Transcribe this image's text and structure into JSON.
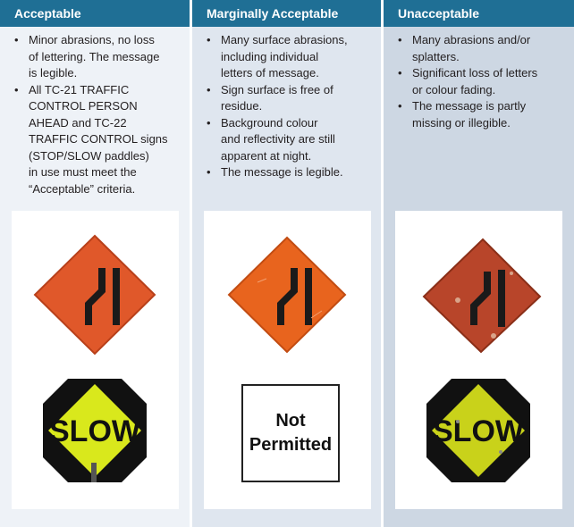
{
  "columns": [
    {
      "header": "Acceptable",
      "criteria": [
        "Minor abrasions, no loss\nof lettering. The message\nis legible.",
        "All TC-21 TRAFFIC\nCONTROL PERSON\nAHEAD and TC-22\nTRAFFIC CONTROL signs\n(STOP/SLOW paddles)\nin use must meet the\n“Acceptable” criteria."
      ],
      "paddle_text": "SLOW"
    },
    {
      "header": "Marginally Acceptable",
      "criteria": [
        "Many surface abrasions,\nincluding individual\nletters of message.",
        "Sign surface is free of\nresidue.",
        "Background colour\nand reflectivity are still\napparent at night.",
        "The message is legible."
      ],
      "not_permitted": "Not\nPermitted"
    },
    {
      "header": "Unacceptable",
      "criteria": [
        "Many abrasions and/or\nsplatters.",
        "Significant loss of letters\nor colour fading.",
        "The message is partly\nmissing or illegible."
      ],
      "paddle_text": "SLOW"
    }
  ],
  "colors": {
    "header": "#1f6f95",
    "sign_orange": "#e0582a",
    "paddle_yellow": "#d9e81c"
  }
}
